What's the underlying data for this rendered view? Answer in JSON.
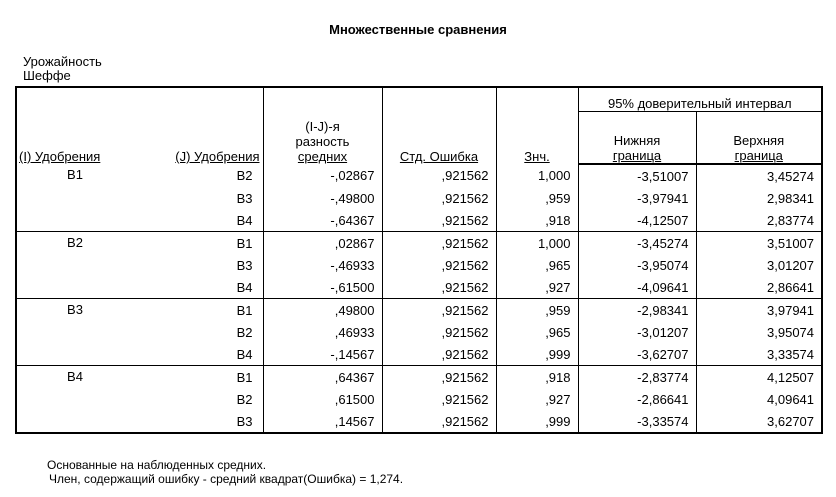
{
  "title": "Множественные сравнения",
  "dependent_label": "Урожайность",
  "method_label": "Шеффе",
  "headers": {
    "i_factor": "(I) Удобрения",
    "j_factor": "(J) Удобрения",
    "mean_diff_line1": "(I-J)-я",
    "mean_diff_line2": "разность",
    "mean_diff_line3": "средних",
    "std_error": "Стд. Ошибка",
    "sig": "Знч.",
    "ci_group": "95% доверительный интервал",
    "lower_line1": "Нижняя",
    "lower_line2": "граница",
    "upper_line1": "Верхняя",
    "upper_line2": "граница"
  },
  "groups": [
    {
      "i": "B1",
      "rows": [
        {
          "j": "B2",
          "diff": "-,02867",
          "se": ",921562",
          "sig": "1,000",
          "lower": "-3,51007",
          "upper": "3,45274"
        },
        {
          "j": "B3",
          "diff": "-,49800",
          "se": ",921562",
          "sig": ",959",
          "lower": "-3,97941",
          "upper": "2,98341"
        },
        {
          "j": "B4",
          "diff": "-,64367",
          "se": ",921562",
          "sig": ",918",
          "lower": "-4,12507",
          "upper": "2,83774"
        }
      ]
    },
    {
      "i": "B2",
      "rows": [
        {
          "j": "B1",
          "diff": ",02867",
          "se": ",921562",
          "sig": "1,000",
          "lower": "-3,45274",
          "upper": "3,51007"
        },
        {
          "j": "B3",
          "diff": "-,46933",
          "se": ",921562",
          "sig": ",965",
          "lower": "-3,95074",
          "upper": "3,01207"
        },
        {
          "j": "B4",
          "diff": "-,61500",
          "se": ",921562",
          "sig": ",927",
          "lower": "-4,09641",
          "upper": "2,86641"
        }
      ]
    },
    {
      "i": "B3",
      "rows": [
        {
          "j": "B1",
          "diff": ",49800",
          "se": ",921562",
          "sig": ",959",
          "lower": "-2,98341",
          "upper": "3,97941"
        },
        {
          "j": "B2",
          "diff": ",46933",
          "se": ",921562",
          "sig": ",965",
          "lower": "-3,01207",
          "upper": "3,95074"
        },
        {
          "j": "B4",
          "diff": "-,14567",
          "se": ",921562",
          "sig": ",999",
          "lower": "-3,62707",
          "upper": "3,33574"
        }
      ]
    },
    {
      "i": "B4",
      "rows": [
        {
          "j": "B1",
          "diff": ",64367",
          "se": ",921562",
          "sig": ",918",
          "lower": "-2,83774",
          "upper": "4,12507"
        },
        {
          "j": "B2",
          "diff": ",61500",
          "se": ",921562",
          "sig": ",927",
          "lower": "-2,86641",
          "upper": "4,09641"
        },
        {
          "j": "B3",
          "diff": ",14567",
          "se": ",921562",
          "sig": ",999",
          "lower": "-3,33574",
          "upper": "3,62707"
        }
      ]
    }
  ],
  "footnotes": {
    "line1": "Основанные на наблюденных средних.",
    "line2": "Член, содержащий ошибку - средний квадрат(Ошибка) = 1,274."
  }
}
